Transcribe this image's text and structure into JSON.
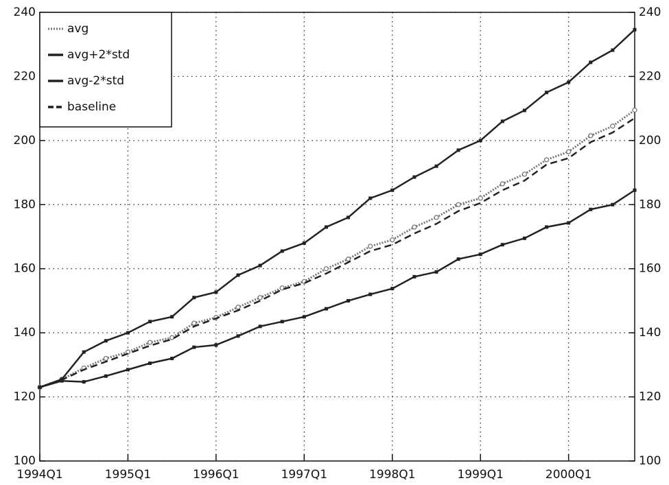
{
  "chart_data": {
    "type": "line",
    "categories": [
      "1994Q1",
      null,
      null,
      null,
      "1995Q1",
      null,
      null,
      null,
      "1996Q1",
      null,
      null,
      null,
      "1997Q1",
      null,
      null,
      null,
      "1998Q1",
      null,
      null,
      null,
      "1999Q1",
      null,
      null,
      null,
      "2000Q1",
      null,
      null,
      null
    ],
    "series": [
      {
        "name": "avg",
        "color": "#777777",
        "style": "dotted",
        "marker": "circle",
        "values": [
          123,
          125.5,
          129,
          132,
          134,
          137,
          138.5,
          143,
          144.8,
          148,
          151,
          154,
          156,
          160,
          163,
          167,
          169,
          173,
          176,
          180,
          182,
          186.5,
          189.5,
          194,
          196.5,
          201.5,
          204.5,
          209.5
        ]
      },
      {
        "name": "avg+2*std",
        "color": "#222222",
        "style": "solid",
        "marker": "square",
        "values": [
          123,
          125.5,
          134,
          137.5,
          140,
          143.5,
          145,
          151,
          152.7,
          158,
          161,
          165.5,
          168,
          173,
          176,
          182,
          184.5,
          188.6,
          192,
          197,
          200,
          206,
          209.4,
          215,
          218.2,
          224.4,
          228.2,
          234.6
        ]
      },
      {
        "name": "avg-2*std",
        "color": "#222222",
        "style": "solid",
        "marker": "square",
        "values": [
          123,
          125,
          124.7,
          126.5,
          128.5,
          130.5,
          132,
          135.5,
          136.2,
          139,
          142,
          143.5,
          145,
          147.5,
          150,
          152,
          153.8,
          157.5,
          159,
          163,
          164.5,
          167.5,
          169.5,
          173,
          174.3,
          178.5,
          180,
          184.5
        ]
      },
      {
        "name": "baseline",
        "color": "#222222",
        "style": "dashed",
        "marker": "none",
        "values": [
          123,
          125.3,
          128.5,
          131,
          133.5,
          136,
          138,
          142,
          144.5,
          147,
          150,
          153.5,
          155.5,
          158.5,
          162,
          165.5,
          167.5,
          171,
          174,
          178,
          180.5,
          184.5,
          187.5,
          192.5,
          194.5,
          199.5,
          202.5,
          207
        ]
      }
    ],
    "ylim": [
      100,
      240
    ],
    "yticks": [
      100,
      120,
      140,
      160,
      180,
      200,
      220,
      240
    ],
    "y2lim": [
      100,
      240
    ],
    "y2ticks": [
      100,
      120,
      140,
      160,
      180,
      200,
      220,
      240
    ],
    "grid": true,
    "legend": "top-left"
  }
}
